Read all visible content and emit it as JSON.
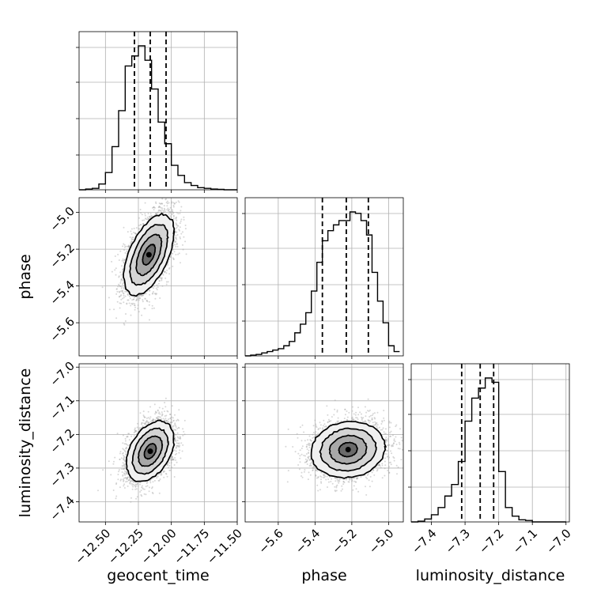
{
  "chart_data": {
    "type": "corner",
    "parameters": [
      "geocent_time",
      "phase",
      "luminosity_distance"
    ],
    "axis_labels": {
      "geocent_time": "geocent_time",
      "phase": "phase",
      "luminosity_distance": "luminosity_distance"
    },
    "ranges": {
      "geocent_time": [
        -12.7,
        -11.5
      ],
      "phase": [
        -5.78,
        -4.92
      ],
      "luminosity_distance": [
        -7.46,
        -6.99
      ]
    },
    "ticks": {
      "geocent_time": [
        {
          "value": -12.5,
          "label": "−12.50"
        },
        {
          "value": -12.25,
          "label": "−12.25"
        },
        {
          "value": -12.0,
          "label": "−12.00"
        },
        {
          "value": -11.75,
          "label": "−11.75"
        },
        {
          "value": -11.5,
          "label": "−11.50"
        }
      ],
      "phase": [
        {
          "value": -5.6,
          "label": "−5.6"
        },
        {
          "value": -5.4,
          "label": "−5.4"
        },
        {
          "value": -5.2,
          "label": "−5.2"
        },
        {
          "value": -5.0,
          "label": "−5.0"
        }
      ],
      "luminosity_distance": [
        {
          "value": -7.4,
          "label": "−7.4"
        },
        {
          "value": -7.3,
          "label": "−7.3"
        },
        {
          "value": -7.2,
          "label": "−7.2"
        },
        {
          "value": -7.1,
          "label": "−7.1"
        },
        {
          "value": -7.0,
          "label": "−7.0"
        }
      ]
    },
    "quantiles": {
      "geocent_time": [
        -12.28,
        -12.16,
        -12.04
      ],
      "phase": [
        -5.36,
        -5.23,
        -5.11
      ],
      "luminosity_distance": [
        -7.31,
        -7.255,
        -7.215
      ]
    },
    "histograms": {
      "geocent_time": {
        "edges": [
          -12.7,
          -12.65,
          -12.6,
          -12.55,
          -12.5,
          -12.45,
          -12.4,
          -12.35,
          -12.3,
          -12.25,
          -12.2,
          -12.15,
          -12.1,
          -12.05,
          -12.0,
          -11.95,
          -11.9,
          -11.85,
          -11.8,
          -11.75,
          -11.7,
          -11.65,
          -11.6,
          -11.55,
          -11.5
        ],
        "counts": [
          0.0,
          0.005,
          0.01,
          0.04,
          0.12,
          0.3,
          0.55,
          0.86,
          0.93,
          1.0,
          0.9,
          0.7,
          0.47,
          0.32,
          0.17,
          0.1,
          0.05,
          0.03,
          0.015,
          0.01,
          0.005,
          0.003,
          0.0,
          0.0
        ]
      },
      "phase": {
        "edges": [
          -5.78,
          -5.75,
          -5.72,
          -5.69,
          -5.66,
          -5.63,
          -5.6,
          -5.57,
          -5.54,
          -5.51,
          -5.48,
          -5.45,
          -5.42,
          -5.39,
          -5.36,
          -5.33,
          -5.3,
          -5.27,
          -5.24,
          -5.21,
          -5.18,
          -5.15,
          -5.12,
          -5.09,
          -5.06,
          -5.03,
          -5.0,
          -4.97,
          -4.94
        ],
        "counts": [
          0.0,
          0.005,
          0.01,
          0.02,
          0.03,
          0.04,
          0.05,
          0.07,
          0.1,
          0.16,
          0.22,
          0.3,
          0.45,
          0.65,
          0.8,
          0.87,
          0.91,
          0.94,
          0.94,
          1.0,
          0.99,
          0.94,
          0.84,
          0.58,
          0.38,
          0.23,
          0.07,
          0.03
        ]
      },
      "luminosity_distance": {
        "edges": [
          -7.46,
          -7.44,
          -7.42,
          -7.4,
          -7.38,
          -7.36,
          -7.34,
          -7.32,
          -7.3,
          -7.28,
          -7.26,
          -7.24,
          -7.22,
          -7.2,
          -7.18,
          -7.16,
          -7.14,
          -7.12,
          -7.1,
          -7.08,
          -7.06,
          -7.04,
          -7.02,
          -7.0
        ],
        "counts": [
          0.0,
          0.005,
          0.02,
          0.05,
          0.1,
          0.18,
          0.26,
          0.42,
          0.7,
          0.86,
          0.93,
          1.0,
          0.97,
          0.35,
          0.1,
          0.04,
          0.015,
          0.01,
          0.0,
          0.0,
          0.0,
          0.0,
          0.0
        ]
      }
    },
    "posteriors_2d": [
      {
        "x": "geocent_time",
        "y": "phase",
        "mean": [
          -12.17,
          -5.23
        ],
        "sd": [
          0.095,
          0.11
        ],
        "rho": 0.55
      },
      {
        "x": "geocent_time",
        "y": "luminosity_distance",
        "mean": [
          -12.16,
          -7.25
        ],
        "sd": [
          0.09,
          0.045
        ],
        "rho": 0.4
      },
      {
        "x": "phase",
        "y": "luminosity_distance",
        "mean": [
          -5.22,
          -7.245
        ],
        "sd": [
          0.1,
          0.042
        ],
        "rho": 0.1
      }
    ],
    "contour_levels_sigma": [
      0.5,
      1.0,
      1.5,
      2.0
    ],
    "grid": true,
    "colors": {
      "histogram": "#000000",
      "scatter": "#a6a6a6",
      "grid": "#b0b0b0"
    }
  }
}
